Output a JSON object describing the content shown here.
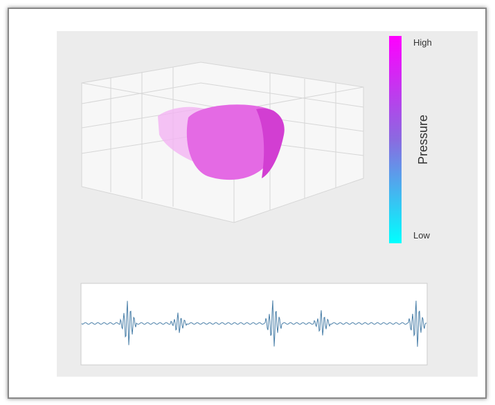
{
  "colorbar": {
    "high": "High",
    "label": "Pressure",
    "low": "Low"
  }
}
